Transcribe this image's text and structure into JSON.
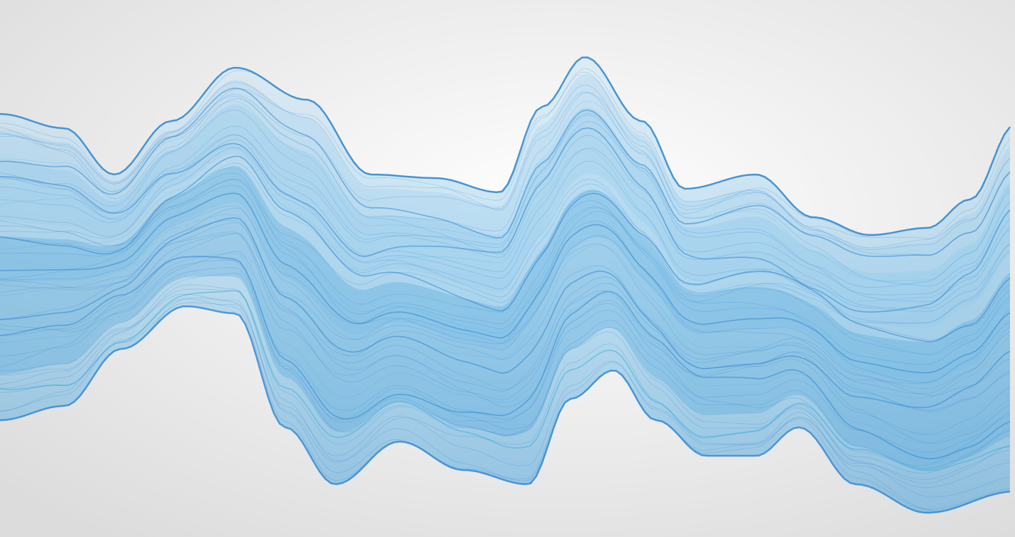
{
  "scene": {
    "subject": "abstract-translucent-wave-ribbon",
    "colors": {
      "background_center": "#ffffff",
      "background_edge": "#dcdcdc",
      "ribbon_fill_light": "#cfe6f5",
      "ribbon_fill_mid": "#8ec8ea",
      "ribbon_fill_deep": "#4aa3dc",
      "ribbon_edge": "#2f86cf",
      "ribbon_highlight": "#3bb3dd"
    }
  }
}
